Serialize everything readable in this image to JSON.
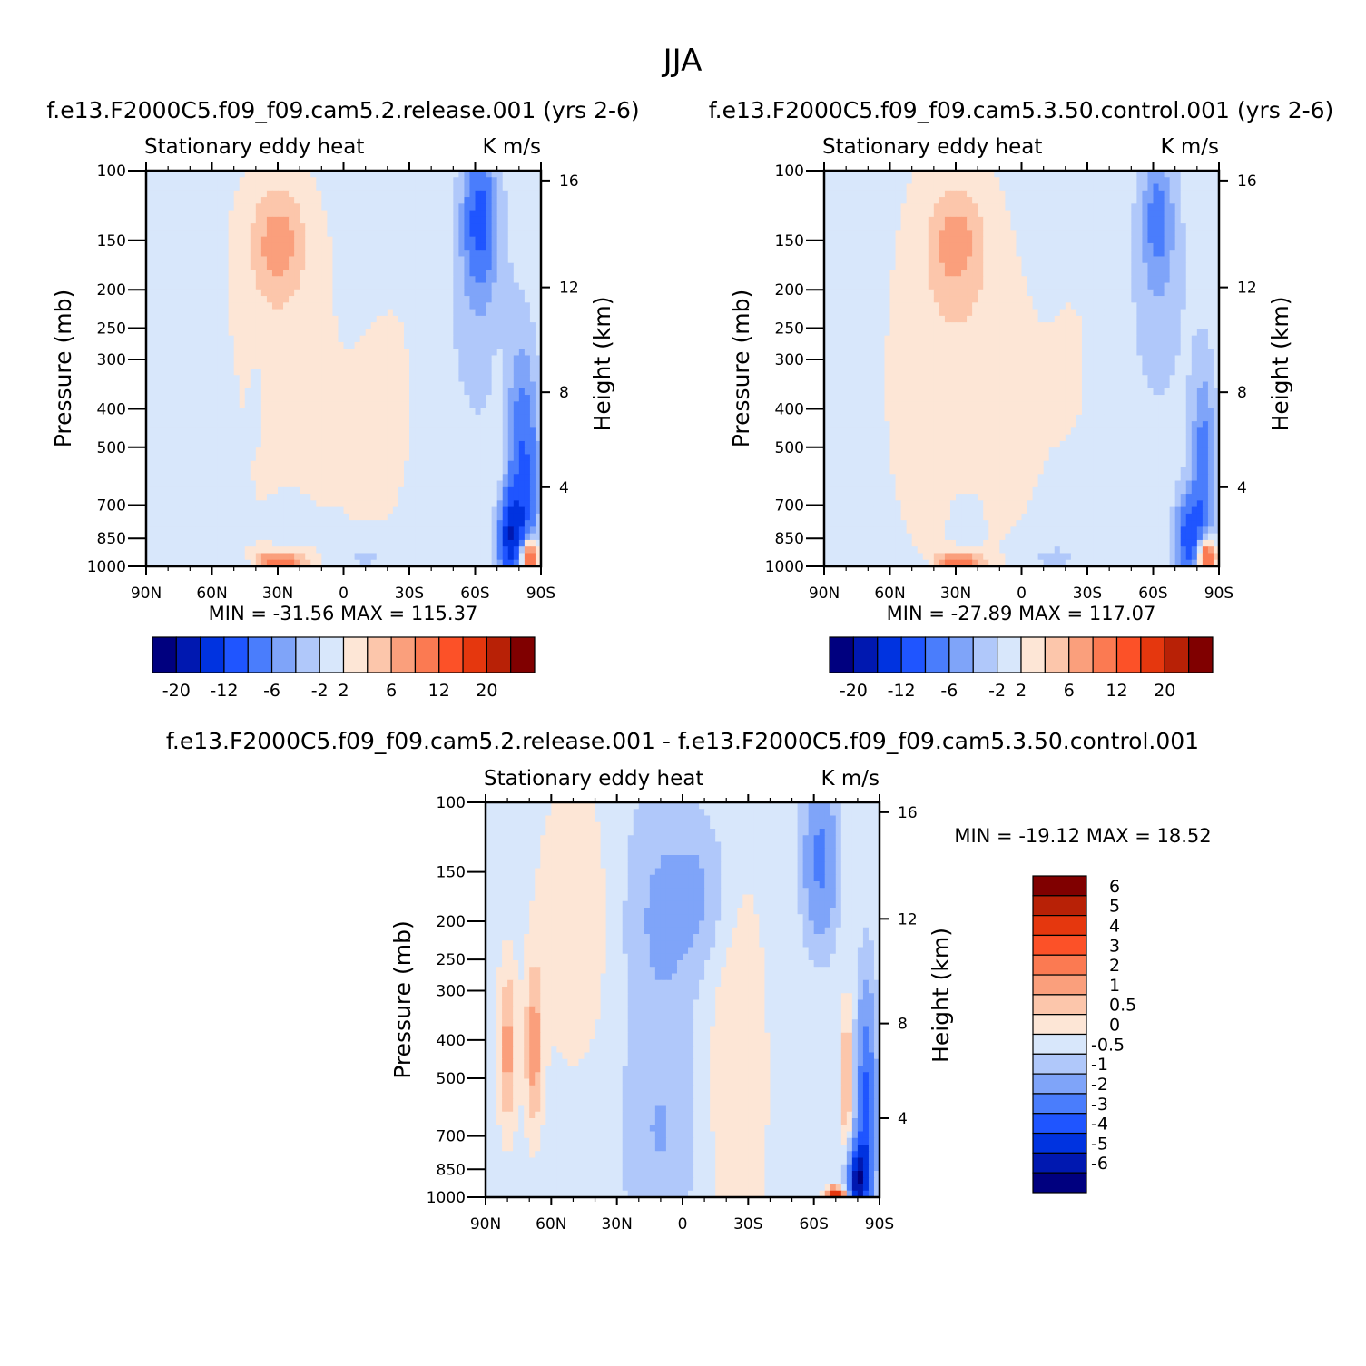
{
  "figure_title": "JJA",
  "colors": {
    "diverging": [
      "#00007f",
      "#0018b0",
      "#0033e0",
      "#1f55ff",
      "#4a7dfc",
      "#7fa4f9",
      "#b0c8fa",
      "#d8e7fb",
      "#fde6d6",
      "#fcc6ab",
      "#fa9f7c",
      "#fb7a52",
      "#fc5128",
      "#e5370e",
      "#b82106",
      "#800000"
    ]
  },
  "chart_data": [
    {
      "type": "heatmap",
      "panel": "release",
      "title": "f.e13.F2000C5.f09_f09.cam5.2.release.001  (yrs 2-6)",
      "left_subtitle": "Stationary eddy heat",
      "right_subtitle": "K m/s",
      "ylabel": "Pressure (mb)",
      "ylabel_right": "Height (km)",
      "x_ticks": [
        "90N",
        "60N",
        "30N",
        "0",
        "30S",
        "60S",
        "90S"
      ],
      "y_ticks": [
        100,
        150,
        200,
        250,
        300,
        400,
        500,
        700,
        850,
        1000
      ],
      "y_ticks_right": [
        16,
        12,
        8,
        4
      ],
      "ylim": [
        1000,
        100
      ],
      "xlim": [
        -90,
        90
      ],
      "stats": "MIN = -31.56   MAX = 115.37",
      "colorbar_labels": [
        "-20",
        "-12",
        "-6",
        "-2",
        "2",
        "6",
        "12",
        "20"
      ],
      "field": [
        {
          "x": -30,
          "p": 150,
          "value": 4,
          "sx": 8,
          "sp": 0.2
        },
        {
          "x": -30,
          "p": 170,
          "value": 2,
          "sx": 15,
          "sp": 0.45
        },
        {
          "x": -25,
          "p": 500,
          "value": 1,
          "sx": 20,
          "sp": 0.6
        },
        {
          "x": 25,
          "p": 350,
          "value": 0.7,
          "sx": 12,
          "sp": 0.8
        },
        {
          "x": 10,
          "p": 500,
          "value": 0.6,
          "sx": 10,
          "sp": 0.5
        },
        {
          "x": 62,
          "p": 130,
          "value": -8,
          "sx": 5,
          "sp": 0.25
        },
        {
          "x": 62,
          "p": 200,
          "value": -3,
          "sx": 10,
          "sp": 0.55
        },
        {
          "x": 82,
          "p": 600,
          "value": -9,
          "sx": 5,
          "sp": 0.5
        },
        {
          "x": 76,
          "p": 850,
          "value": -12,
          "sx": 4,
          "sp": 0.18
        },
        {
          "x": 84,
          "p": 950,
          "value": 16,
          "sx": 3,
          "sp": 0.08
        },
        {
          "x": -30,
          "p": 985,
          "value": 9,
          "sx": 9,
          "sp": 0.05
        },
        {
          "x": -45,
          "p": 990,
          "value": -3,
          "sx": 6,
          "sp": 0.04
        },
        {
          "x": 10,
          "p": 950,
          "value": -2,
          "sx": 12,
          "sp": 0.08
        },
        {
          "x": -25,
          "p": 780,
          "value": -1.5,
          "sx": 5,
          "sp": 0.12
        },
        {
          "x": -70,
          "p": 400,
          "value": -1.2,
          "sx": 3,
          "sp": 0.25
        },
        {
          "x": -40,
          "p": 380,
          "value": -1.2,
          "sx": 2,
          "sp": 0.15
        },
        {
          "x": 70,
          "p": 450,
          "value": 1.5,
          "sx": 2,
          "sp": 0.4
        }
      ],
      "background_value": -0.7
    },
    {
      "type": "heatmap",
      "panel": "control",
      "title": "f.e13.F2000C5.f09_f09.cam5.3.50.control.001  (yrs 2-6)",
      "left_subtitle": "Stationary eddy heat",
      "right_subtitle": "K m/s",
      "ylabel": "Pressure (mb)",
      "ylabel_right": "Height (km)",
      "x_ticks": [
        "90N",
        "60N",
        "30N",
        "0",
        "30S",
        "60S",
        "90S"
      ],
      "y_ticks": [
        100,
        150,
        200,
        250,
        300,
        400,
        500,
        700,
        850,
        1000
      ],
      "y_ticks_right": [
        16,
        12,
        8,
        4
      ],
      "ylim": [
        1000,
        100
      ],
      "xlim": [
        -90,
        90
      ],
      "stats": "MIN = -27.89   MAX = 117.07",
      "colorbar_labels": [
        "-20",
        "-12",
        "-6",
        "-2",
        "2",
        "6",
        "12",
        "20"
      ],
      "field": [
        {
          "x": -30,
          "p": 150,
          "value": 3.5,
          "sx": 8,
          "sp": 0.2
        },
        {
          "x": -30,
          "p": 170,
          "value": 2,
          "sx": 14,
          "sp": 0.45
        },
        {
          "x": -40,
          "p": 400,
          "value": 1.2,
          "sx": 20,
          "sp": 0.8
        },
        {
          "x": -10,
          "p": 450,
          "value": 0.8,
          "sx": 15,
          "sp": 0.7
        },
        {
          "x": 25,
          "p": 300,
          "value": 0.7,
          "sx": 15,
          "sp": 0.9
        },
        {
          "x": 62,
          "p": 130,
          "value": -5,
          "sx": 5,
          "sp": 0.25
        },
        {
          "x": 62,
          "p": 200,
          "value": -2.5,
          "sx": 10,
          "sp": 0.55
        },
        {
          "x": 83,
          "p": 600,
          "value": -7,
          "sx": 4,
          "sp": 0.45
        },
        {
          "x": 76,
          "p": 850,
          "value": -10,
          "sx": 4,
          "sp": 0.18
        },
        {
          "x": 84,
          "p": 950,
          "value": 15,
          "sx": 3,
          "sp": 0.08
        },
        {
          "x": -30,
          "p": 985,
          "value": 8,
          "sx": 9,
          "sp": 0.05
        },
        {
          "x": -45,
          "p": 990,
          "value": -3,
          "sx": 6,
          "sp": 0.04
        },
        {
          "x": 15,
          "p": 950,
          "value": -2,
          "sx": 12,
          "sp": 0.08
        },
        {
          "x": -25,
          "p": 780,
          "value": -1.5,
          "sx": 5,
          "sp": 0.12
        },
        {
          "x": -75,
          "p": 400,
          "value": -1.5,
          "sx": 3,
          "sp": 0.25
        }
      ],
      "background_value": -0.7
    },
    {
      "type": "heatmap",
      "panel": "difference",
      "title": "f.e13.F2000C5.f09_f09.cam5.2.release.001 - f.e13.F2000C5.f09_f09.cam5.3.50.control.001",
      "left_subtitle": "Stationary eddy heat",
      "right_subtitle": "K m/s",
      "ylabel": "Pressure (mb)",
      "ylabel_right": "Height (km)",
      "x_ticks": [
        "90N",
        "60N",
        "30N",
        "0",
        "30S",
        "60S",
        "90S"
      ],
      "y_ticks": [
        100,
        150,
        200,
        250,
        300,
        400,
        500,
        700,
        850,
        1000
      ],
      "y_ticks_right": [
        16,
        12,
        8,
        4
      ],
      "ylim": [
        1000,
        100
      ],
      "xlim": [
        -90,
        90
      ],
      "stats": "MIN = -19.12   MAX =  18.52",
      "colorbar_labels": [
        "6",
        "5",
        "4",
        "3",
        "2",
        "1",
        "0.5",
        "0",
        "-0.5",
        "-1",
        "-2",
        "-3",
        "-4",
        "-5",
        "-6"
      ],
      "field": [
        {
          "x": -80,
          "p": 420,
          "value": 1.5,
          "sx": 3,
          "sp": 0.35
        },
        {
          "x": -68,
          "p": 420,
          "value": 1.5,
          "sx": 3,
          "sp": 0.35
        },
        {
          "x": -50,
          "p": 200,
          "value": 0.8,
          "sx": 12,
          "sp": 0.6
        },
        {
          "x": -10,
          "p": 200,
          "value": -0.8,
          "sx": 12,
          "sp": 0.5
        },
        {
          "x": 10,
          "p": 170,
          "value": -0.7,
          "sx": 10,
          "sp": 0.3
        },
        {
          "x": 25,
          "p": 500,
          "value": 0.8,
          "sx": 10,
          "sp": 1.0
        },
        {
          "x": 63,
          "p": 140,
          "value": -2,
          "sx": 5,
          "sp": 0.3
        },
        {
          "x": 84,
          "p": 600,
          "value": -3,
          "sx": 3,
          "sp": 0.45
        },
        {
          "x": 80,
          "p": 900,
          "value": -5,
          "sx": 3,
          "sp": 0.15
        },
        {
          "x": 75,
          "p": 500,
          "value": 1.5,
          "sx": 2,
          "sp": 0.3
        },
        {
          "x": 70,
          "p": 990,
          "value": 5,
          "sx": 3,
          "sp": 0.03
        },
        {
          "x": -10,
          "p": 700,
          "value": -0.7,
          "sx": 12,
          "sp": 0.4
        }
      ],
      "background_value": -0.3
    }
  ]
}
